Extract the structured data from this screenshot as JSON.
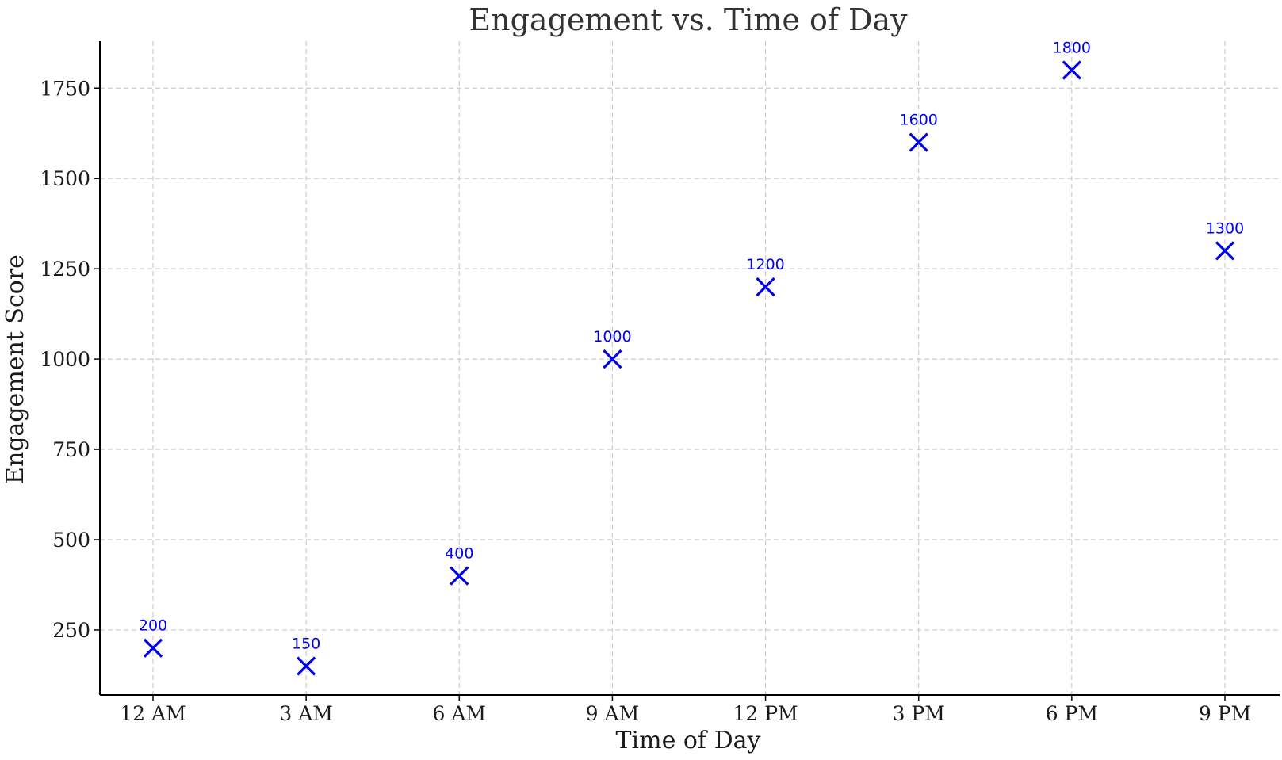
{
  "chart_data": {
    "type": "scatter",
    "title": "Engagement vs. Time of Day",
    "xlabel": "Time of Day",
    "ylabel": "Engagement Score",
    "categories": [
      "12 AM",
      "3 AM",
      "6 AM",
      "9 AM",
      "12 PM",
      "3 PM",
      "6 PM",
      "9 PM"
    ],
    "values": [
      200,
      150,
      400,
      1000,
      1200,
      1600,
      1800,
      1300
    ],
    "data_labels": [
      "200",
      "150",
      "400",
      "1000",
      "1200",
      "1600",
      "1800",
      "1300"
    ],
    "yticks": [
      250,
      500,
      750,
      1000,
      1250,
      1500,
      1750
    ],
    "ylim": [
      70,
      1880
    ],
    "marker": "x",
    "color": "#0000ee",
    "grid": true,
    "legend": "none"
  }
}
